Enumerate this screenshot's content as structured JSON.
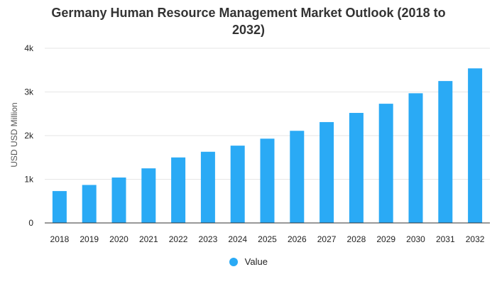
{
  "chart_data": {
    "type": "bar",
    "title_lines": [
      "Germany Human Resource Management Market Outlook (2018 to",
      "2032)"
    ],
    "xlabel": "",
    "ylabel": "USD USD Million",
    "categories": [
      "2018",
      "2019",
      "2020",
      "2021",
      "2022",
      "2023",
      "2024",
      "2025",
      "2026",
      "2027",
      "2028",
      "2029",
      "2030",
      "2031",
      "2032"
    ],
    "values": [
      730,
      870,
      1040,
      1250,
      1500,
      1630,
      1770,
      1930,
      2110,
      2310,
      2520,
      2730,
      2970,
      3250,
      3540
    ],
    "ylim": [
      0,
      4000
    ],
    "yticks": [
      {
        "value": 0,
        "label": "0"
      },
      {
        "value": 1000,
        "label": "1k"
      },
      {
        "value": 2000,
        "label": "2k"
      },
      {
        "value": 3000,
        "label": "3k"
      },
      {
        "value": 4000,
        "label": "4k"
      }
    ],
    "grid": true,
    "legend": {
      "position": "bottom",
      "label": "Value"
    },
    "colors": {
      "bar": "#2aaaf5",
      "grid": "#e6e6e6",
      "axis": "#333333"
    }
  }
}
